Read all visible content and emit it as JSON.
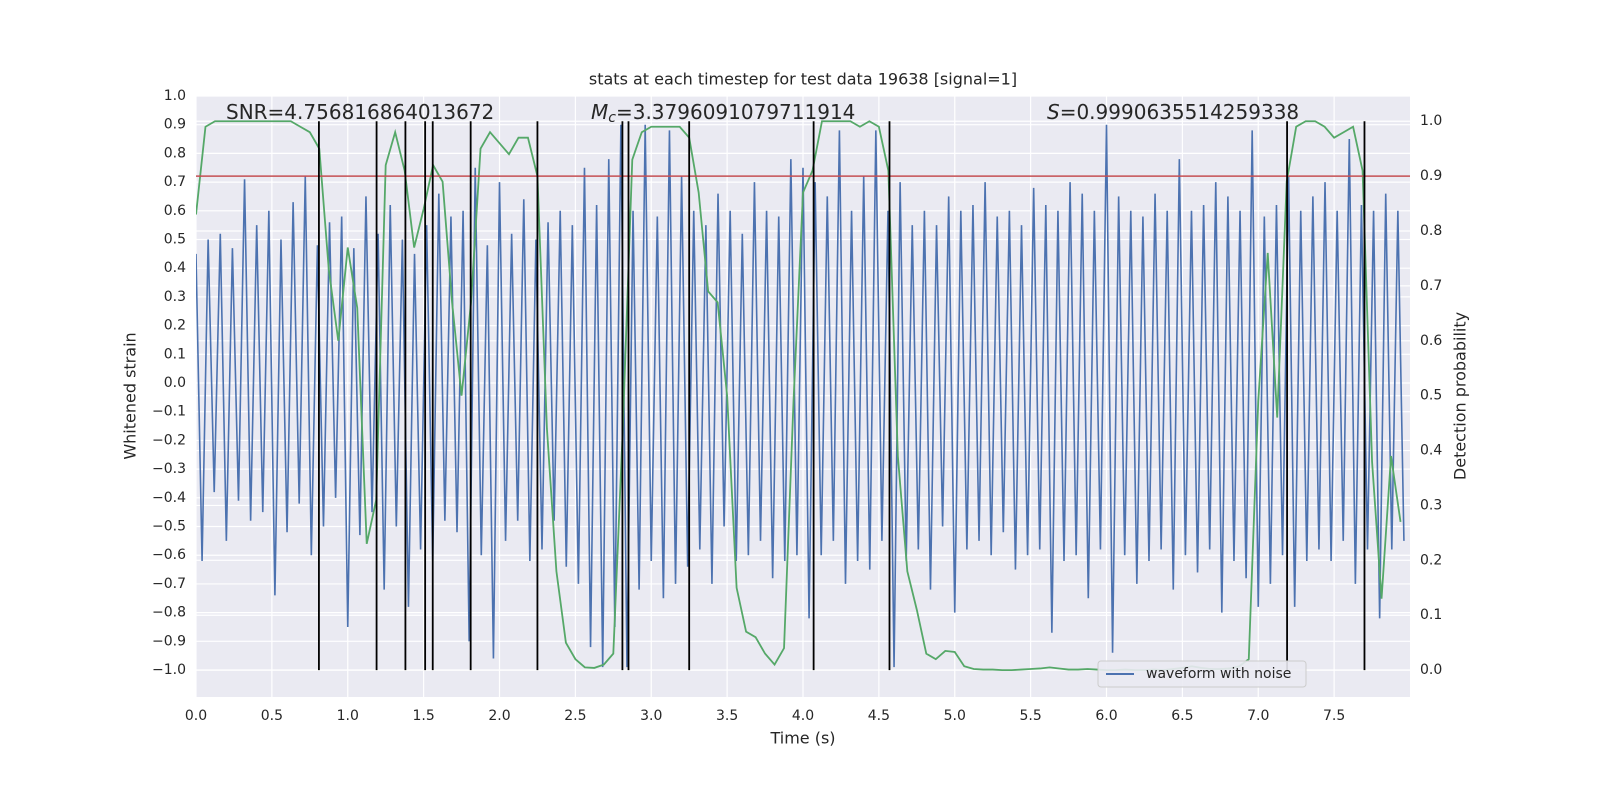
{
  "chart_data": {
    "type": "line",
    "title": "stats at each timestep for test data 19638 [signal=1]",
    "xlabel": "Time (s)",
    "ylabel": "Whitened strain",
    "y2label": "Detection probability",
    "annotations": [
      {
        "text": "SNR=4.756816864013672"
      },
      {
        "symbol": "M",
        "subscript": "c",
        "text": "=3.3796091079711914"
      },
      {
        "symbol": "S",
        "text": "=0.9990635514259338"
      }
    ],
    "xlim": [
      0,
      8.0
    ],
    "xticks": [
      {
        "value": 0,
        "label": "0.0"
      },
      0.5,
      {
        "value": 1,
        "label": "1.0"
      },
      1.5,
      {
        "value": 2,
        "label": "2.0"
      },
      2.5,
      {
        "value": 3,
        "label": "3.0"
      },
      3.5,
      {
        "value": 4,
        "label": "4.0"
      },
      4.5,
      {
        "value": 5,
        "label": "5.0"
      },
      5.5,
      {
        "value": 6,
        "label": "6.0"
      },
      6.5,
      {
        "value": 7,
        "label": "7.0"
      },
      7.5
    ],
    "ylim": [
      -1.094,
      1.0
    ],
    "yticks": [
      {
        "value": -1.0,
        "label": "−1.0"
      },
      {
        "value": -0.9,
        "label": "−0.9"
      },
      {
        "value": -0.8,
        "label": "−0.8"
      },
      {
        "value": -0.7,
        "label": "−0.7"
      },
      {
        "value": -0.6,
        "label": "−0.6"
      },
      {
        "value": -0.5,
        "label": "−0.5"
      },
      {
        "value": -0.4,
        "label": "−0.4"
      },
      {
        "value": -0.3,
        "label": "−0.3"
      },
      {
        "value": -0.2,
        "label": "−0.2"
      },
      {
        "value": -0.1,
        "label": "−0.1"
      },
      {
        "value": 0,
        "label": "0.0"
      },
      0.1,
      0.2,
      0.3,
      0.4,
      0.5,
      0.6,
      0.7,
      0.8,
      0.9,
      {
        "value": 1.0,
        "label": "1.0"
      }
    ],
    "y2lim": [
      -0.049,
      1.046
    ],
    "y2ticks": [
      {
        "value": 0,
        "label": "0.0"
      },
      0.1,
      0.2,
      0.3,
      0.4,
      0.5,
      0.6,
      0.7,
      0.8,
      0.9,
      {
        "value": 1.0,
        "label": "1.0"
      }
    ],
    "grid": true,
    "legend": "lower right",
    "series": [
      {
        "name": "waveform with noise",
        "color": "#4c72b0",
        "x": [
          0,
          0.04,
          0.08,
          0.12,
          0.16,
          0.2,
          0.24,
          0.28,
          0.32,
          0.36,
          0.4,
          0.44,
          0.48,
          0.52,
          0.56,
          0.6,
          0.64,
          0.68,
          0.72,
          0.76,
          0.8,
          0.84,
          0.88,
          0.92,
          0.96,
          1.0,
          1.04,
          1.08,
          1.12,
          1.16,
          1.2,
          1.24,
          1.28,
          1.32,
          1.36,
          1.4,
          1.44,
          1.48,
          1.52,
          1.56,
          1.6,
          1.64,
          1.68,
          1.72,
          1.76,
          1.8,
          1.84,
          1.88,
          1.92,
          1.96,
          2.0,
          2.04,
          2.08,
          2.12,
          2.16,
          2.2,
          2.24,
          2.28,
          2.32,
          2.36,
          2.4,
          2.44,
          2.48,
          2.52,
          2.56,
          2.6,
          2.64,
          2.68,
          2.72,
          2.76,
          2.8,
          2.84,
          2.88,
          2.92,
          2.96,
          3.0,
          3.04,
          3.08,
          3.12,
          3.16,
          3.2,
          3.24,
          3.28,
          3.32,
          3.36,
          3.4,
          3.44,
          3.48,
          3.52,
          3.56,
          3.6,
          3.64,
          3.68,
          3.72,
          3.76,
          3.8,
          3.84,
          3.88,
          3.92,
          3.96,
          4.0,
          4.04,
          4.08,
          4.12,
          4.16,
          4.2,
          4.24,
          4.28,
          4.32,
          4.36,
          4.4,
          4.44,
          4.48,
          4.52,
          4.56,
          4.6,
          4.64,
          4.68,
          4.72,
          4.76,
          4.8,
          4.84,
          4.88,
          4.92,
          4.96,
          5.0,
          5.04,
          5.08,
          5.12,
          5.16,
          5.2,
          5.24,
          5.28,
          5.32,
          5.36,
          5.4,
          5.44,
          5.48,
          5.52,
          5.56,
          5.6,
          5.64,
          5.68,
          5.72,
          5.76,
          5.8,
          5.84,
          5.88,
          5.92,
          5.96,
          6.0,
          6.04,
          6.08,
          6.12,
          6.16,
          6.2,
          6.24,
          6.28,
          6.32,
          6.36,
          6.4,
          6.44,
          6.48,
          6.52,
          6.56,
          6.6,
          6.64,
          6.68,
          6.72,
          6.76,
          6.8,
          6.84,
          6.88,
          6.92,
          6.96,
          7.0,
          7.04,
          7.08,
          7.12,
          7.16,
          7.2,
          7.24,
          7.28,
          7.32,
          7.36,
          7.4,
          7.44,
          7.48,
          7.52,
          7.56,
          7.6,
          7.64,
          7.68,
          7.72,
          7.76,
          7.8,
          7.84,
          7.88,
          7.92,
          7.96
        ],
        "values": [
          0.45,
          -0.62,
          0.5,
          -0.38,
          0.52,
          -0.55,
          0.47,
          -0.41,
          0.71,
          -0.48,
          0.55,
          -0.45,
          0.6,
          -0.74,
          0.5,
          -0.52,
          0.63,
          -0.42,
          0.72,
          -0.6,
          0.48,
          -0.5,
          0.56,
          -0.4,
          0.58,
          -0.85,
          0.47,
          -0.53,
          0.65,
          -0.45,
          0.52,
          -0.72,
          0.62,
          -0.5,
          0.5,
          -0.78,
          0.45,
          -0.58,
          0.55,
          -0.62,
          0.66,
          -0.48,
          0.58,
          -0.52,
          0.6,
          -0.9,
          0.75,
          -0.6,
          0.48,
          -0.96,
          0.7,
          -0.55,
          0.52,
          -0.48,
          0.64,
          -0.62,
          0.5,
          -0.58,
          0.56,
          -0.48,
          0.6,
          -0.64,
          0.55,
          -0.7,
          0.75,
          -0.92,
          0.62,
          -0.99,
          0.78,
          -0.85,
          0.9,
          -0.99,
          0.6,
          -0.72,
          0.9,
          -0.62,
          0.58,
          -0.75,
          0.88,
          -0.7,
          0.72,
          -0.64,
          0.6,
          -0.58,
          0.55,
          -0.7,
          0.66,
          -0.5,
          0.6,
          -0.62,
          0.52,
          -0.6,
          0.7,
          -0.55,
          0.6,
          -0.68,
          0.58,
          -0.62,
          0.78,
          -0.6,
          0.75,
          -0.82,
          0.7,
          -0.6,
          0.65,
          -0.55,
          0.88,
          -0.7,
          0.6,
          -0.62,
          0.72,
          -0.65,
          0.88,
          -0.55,
          0.6,
          -0.99,
          0.7,
          -0.62,
          0.55,
          -0.58,
          0.6,
          -0.72,
          0.55,
          -0.5,
          0.65,
          -0.8,
          0.6,
          -0.58,
          0.62,
          -0.55,
          0.7,
          -0.6,
          0.58,
          -0.52,
          0.6,
          -0.65,
          0.55,
          -0.6,
          0.68,
          -0.58,
          0.62,
          -0.87,
          0.6,
          -0.62,
          0.7,
          -0.6,
          0.66,
          -0.75,
          0.6,
          -0.58,
          0.9,
          -0.94,
          0.65,
          -0.6,
          0.6,
          -0.7,
          0.58,
          -0.62,
          0.66,
          -0.58,
          0.6,
          -0.72,
          0.78,
          -0.6,
          0.6,
          -0.66,
          0.62,
          -0.58,
          0.7,
          -0.8,
          0.65,
          -0.62,
          0.6,
          -0.68,
          0.88,
          -0.78,
          0.58,
          -0.7,
          0.62,
          -0.6,
          0.72,
          -0.78,
          0.6,
          -0.62,
          0.65,
          -0.58,
          0.7,
          -0.62,
          0.6,
          -0.55,
          0.85,
          -0.7,
          0.62,
          -0.58,
          0.6,
          -0.82,
          0.66,
          -0.58,
          0.6,
          -0.55
        ]
      },
      {
        "color": "#55a868",
        "axis": "y2",
        "x": [
          0,
          0.0625,
          0.125,
          0.1875,
          0.25,
          0.3125,
          0.375,
          0.4375,
          0.5,
          0.5625,
          0.625,
          0.6875,
          0.75,
          0.8125,
          0.875,
          0.9375,
          1.0,
          1.0625,
          1.125,
          1.1875,
          1.25,
          1.3125,
          1.375,
          1.4375,
          1.5,
          1.5625,
          1.625,
          1.6875,
          1.75,
          1.8125,
          1.875,
          1.9375,
          2.0,
          2.0625,
          2.125,
          2.1875,
          2.25,
          2.3125,
          2.375,
          2.4375,
          2.5,
          2.5625,
          2.625,
          2.6875,
          2.75,
          2.8125,
          2.875,
          2.9375,
          3.0,
          3.0625,
          3.125,
          3.1875,
          3.25,
          3.3125,
          3.375,
          3.4375,
          3.5,
          3.5625,
          3.625,
          3.6875,
          3.75,
          3.8125,
          3.875,
          3.9375,
          4.0,
          4.0625,
          4.125,
          4.1875,
          4.25,
          4.3125,
          4.375,
          4.4375,
          4.5,
          4.5625,
          4.625,
          4.6875,
          4.75,
          4.8125,
          4.875,
          4.9375,
          5.0,
          5.0625,
          5.125,
          5.1875,
          5.25,
          5.3125,
          5.375,
          5.4375,
          5.5,
          5.5625,
          5.625,
          5.6875,
          5.75,
          5.8125,
          5.875,
          5.9375,
          6.0,
          6.0625,
          6.125,
          6.1875,
          6.25,
          6.3125,
          6.375,
          6.4375,
          6.5,
          6.5625,
          6.625,
          6.6875,
          6.75,
          6.8125,
          6.875,
          6.9375,
          7.0,
          7.0625,
          7.125,
          7.1875,
          7.25,
          7.3125,
          7.375,
          7.4375,
          7.5,
          7.5625,
          7.625,
          7.6875,
          7.75,
          7.8125,
          7.875,
          7.9375
        ],
        "values": [
          0.83,
          0.99,
          1.0,
          1.0,
          1.0,
          1.0,
          1.0,
          1.0,
          1.0,
          1.0,
          1.0,
          0.99,
          0.98,
          0.95,
          0.73,
          0.6,
          0.77,
          0.66,
          0.23,
          0.31,
          0.92,
          0.98,
          0.91,
          0.77,
          0.84,
          0.92,
          0.89,
          0.67,
          0.5,
          0.67,
          0.95,
          0.98,
          0.96,
          0.94,
          0.97,
          0.97,
          0.9,
          0.44,
          0.18,
          0.05,
          0.02,
          0.005,
          0.004,
          0.01,
          0.03,
          0.44,
          0.93,
          0.98,
          0.99,
          0.99,
          0.99,
          0.99,
          0.97,
          0.87,
          0.69,
          0.67,
          0.5,
          0.15,
          0.07,
          0.06,
          0.03,
          0.01,
          0.04,
          0.49,
          0.87,
          0.91,
          1.0,
          1.0,
          1.0,
          1.0,
          0.99,
          1.0,
          0.99,
          0.91,
          0.39,
          0.18,
          0.11,
          0.03,
          0.02,
          0.035,
          0.033,
          0.007,
          0.002,
          0.001,
          0.001,
          0.0,
          0.0,
          0.001,
          0.002,
          0.003,
          0.005,
          0.003,
          0.001,
          0.001,
          0.002,
          0.001,
          0.0,
          0.0,
          0.001,
          0.0,
          0.0,
          0.001,
          0.0,
          0.002,
          0.004,
          0.007,
          0.004,
          0.002,
          0.002,
          0.003,
          0.007,
          0.02,
          0.49,
          0.76,
          0.46,
          0.89,
          0.99,
          1.0,
          1.0,
          0.99,
          0.97,
          0.98,
          0.99,
          0.91,
          0.38,
          0.13,
          0.39,
          0.27
        ]
      }
    ],
    "threshold": {
      "axis": "y2",
      "value": 0.9,
      "color": "#c44e52"
    },
    "vlines": {
      "color": "#000000",
      "x": [
        0.81,
        1.19,
        1.38,
        1.51,
        1.56,
        1.81,
        2.25,
        2.81,
        2.85,
        3.25,
        4.07,
        4.57,
        7.19,
        7.7
      ]
    }
  }
}
